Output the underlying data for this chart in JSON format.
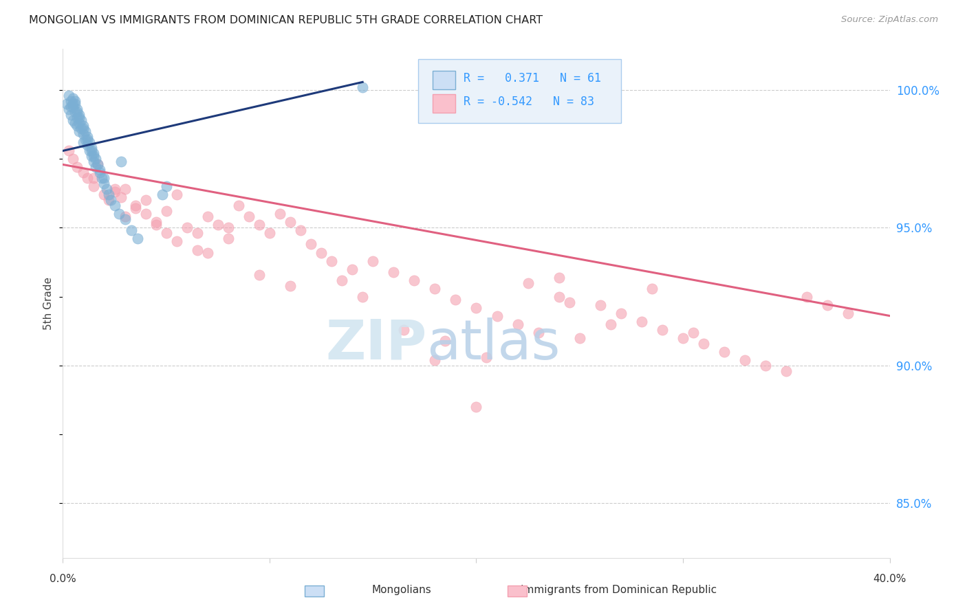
{
  "title": "MONGOLIAN VS IMMIGRANTS FROM DOMINICAN REPUBLIC 5TH GRADE CORRELATION CHART",
  "source": "Source: ZipAtlas.com",
  "ylabel": "5th Grade",
  "xlim": [
    0.0,
    40.0
  ],
  "ylim": [
    83.0,
    101.5
  ],
  "yticks": [
    85.0,
    90.0,
    95.0,
    100.0
  ],
  "ytick_labels": [
    "85.0%",
    "90.0%",
    "95.0%",
    "100.0%"
  ],
  "blue_R": 0.371,
  "blue_N": 61,
  "pink_R": -0.542,
  "pink_N": 83,
  "blue_color": "#7BAFD4",
  "pink_color": "#F4A0B0",
  "blue_line_color": "#1E3A7A",
  "pink_line_color": "#E06080",
  "right_axis_color": "#3399FF",
  "legend_box_facecolor": "#EAF2FA",
  "legend_box_edgecolor": "#AACCEE",
  "background_color": "#FFFFFF",
  "blue_x": [
    0.2,
    0.3,
    0.3,
    0.4,
    0.4,
    0.5,
    0.5,
    0.5,
    0.6,
    0.6,
    0.6,
    0.7,
    0.7,
    0.7,
    0.8,
    0.8,
    0.8,
    0.9,
    0.9,
    1.0,
    1.0,
    1.0,
    1.1,
    1.1,
    1.2,
    1.2,
    1.3,
    1.3,
    1.4,
    1.4,
    1.5,
    1.5,
    1.6,
    1.6,
    1.7,
    1.8,
    1.9,
    2.0,
    2.1,
    2.2,
    2.3,
    2.5,
    2.7,
    3.0,
    3.3,
    3.6,
    0.4,
    0.5,
    0.6,
    0.7,
    0.8,
    1.0,
    1.2,
    1.4,
    5.0,
    2.8,
    1.5,
    1.8,
    2.0,
    4.8,
    14.5
  ],
  "blue_y": [
    99.5,
    99.8,
    99.3,
    99.6,
    99.1,
    99.7,
    99.4,
    98.9,
    99.5,
    99.2,
    98.8,
    99.3,
    99.0,
    98.7,
    99.1,
    98.8,
    98.5,
    98.9,
    98.6,
    98.7,
    98.4,
    98.1,
    98.5,
    98.2,
    98.3,
    98.0,
    98.1,
    97.8,
    97.9,
    97.6,
    97.7,
    97.4,
    97.5,
    97.2,
    97.3,
    97.0,
    96.8,
    96.6,
    96.4,
    96.2,
    96.0,
    95.8,
    95.5,
    95.3,
    94.9,
    94.6,
    99.4,
    99.5,
    99.6,
    99.2,
    99.0,
    98.6,
    98.2,
    97.8,
    96.5,
    97.4,
    97.6,
    97.1,
    96.8,
    96.2,
    100.1
  ],
  "pink_x": [
    0.3,
    0.5,
    0.7,
    1.0,
    1.2,
    1.5,
    1.7,
    2.0,
    2.2,
    2.5,
    2.8,
    3.0,
    3.5,
    4.0,
    4.5,
    5.0,
    5.5,
    6.0,
    6.5,
    7.0,
    7.5,
    8.0,
    8.5,
    9.0,
    9.5,
    10.0,
    10.5,
    11.0,
    11.5,
    12.0,
    12.5,
    13.0,
    14.0,
    15.0,
    16.0,
    17.0,
    18.0,
    19.0,
    20.0,
    21.0,
    22.0,
    23.0,
    24.0,
    25.0,
    26.0,
    27.0,
    28.0,
    29.0,
    30.0,
    31.0,
    32.0,
    33.0,
    34.0,
    35.0,
    36.0,
    37.0,
    38.0,
    1.5,
    2.5,
    3.0,
    4.5,
    5.0,
    6.5,
    8.0,
    4.0,
    3.5,
    5.5,
    7.0,
    9.5,
    11.0,
    13.5,
    14.5,
    16.5,
    18.5,
    20.5,
    22.5,
    24.5,
    26.5,
    28.5,
    30.5,
    24.0,
    20.0,
    18.0
  ],
  "pink_y": [
    97.8,
    97.5,
    97.2,
    97.0,
    96.8,
    96.5,
    97.3,
    96.2,
    96.0,
    96.3,
    96.1,
    96.4,
    95.8,
    95.5,
    95.2,
    95.6,
    96.2,
    95.0,
    94.8,
    95.4,
    95.1,
    94.6,
    95.8,
    95.4,
    95.1,
    94.8,
    95.5,
    95.2,
    94.9,
    94.4,
    94.1,
    93.8,
    93.5,
    93.8,
    93.4,
    93.1,
    92.8,
    92.4,
    92.1,
    91.8,
    91.5,
    91.2,
    92.5,
    91.0,
    92.2,
    91.9,
    91.6,
    91.3,
    91.0,
    90.8,
    90.5,
    90.2,
    90.0,
    89.8,
    92.5,
    92.2,
    91.9,
    96.8,
    96.4,
    95.4,
    95.1,
    94.8,
    94.2,
    95.0,
    96.0,
    95.7,
    94.5,
    94.1,
    93.3,
    92.9,
    93.1,
    92.5,
    91.3,
    90.9,
    90.3,
    93.0,
    92.3,
    91.5,
    92.8,
    91.2,
    93.2,
    88.5,
    90.2
  ],
  "blue_line_x": [
    0.0,
    14.5
  ],
  "blue_line_y": [
    97.8,
    100.3
  ],
  "pink_line_x": [
    0.0,
    40.0
  ],
  "pink_line_y": [
    97.3,
    91.8
  ]
}
